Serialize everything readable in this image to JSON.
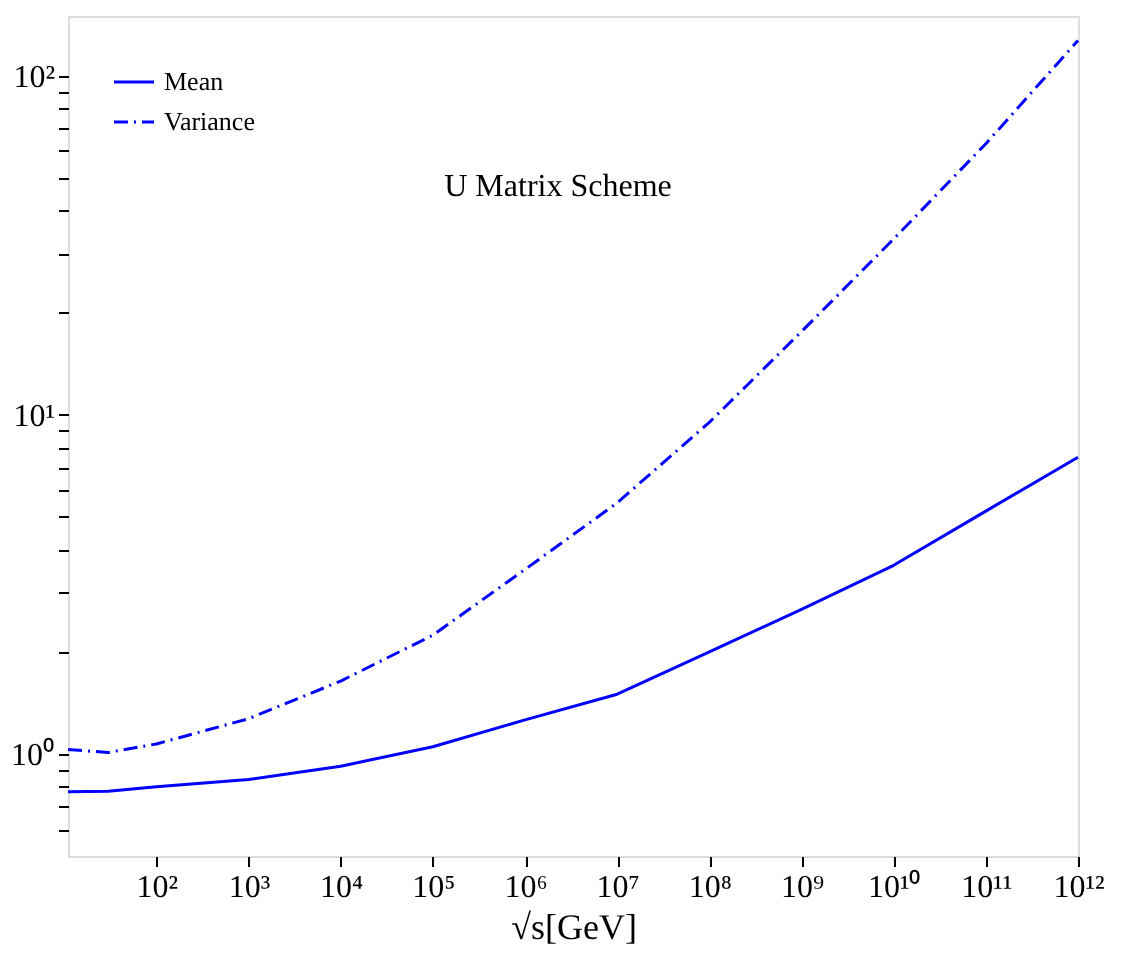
{
  "chart_data": {
    "type": "line",
    "xlabel": "√s[GeV]",
    "annotations": [
      "U Matrix Scheme"
    ],
    "x": [
      11,
      30,
      100,
      1000,
      10000,
      100000,
      1000000,
      10000000,
      100000000,
      1000000000,
      10000000000,
      100000000000,
      1000000000000
    ],
    "series": [
      {
        "name": "Mean",
        "color": "#0000ff",
        "line_style": "solid",
        "values": [
          0.774,
          0.776,
          0.8,
          0.84,
          0.92,
          1.05,
          1.26,
          1.5,
          2.0,
          2.67,
          3.6,
          5.2,
          7.5
        ]
      },
      {
        "name": "Variance",
        "color": "#0000ff",
        "line_style": "dashdot",
        "values": [
          1.03,
          1.01,
          1.07,
          1.27,
          1.64,
          2.24,
          3.5,
          5.5,
          9.5,
          17.6,
          33,
          63,
          127
        ]
      }
    ],
    "log": "xy",
    "xlim": [
      11,
      1000000000000
    ],
    "ylim": [
      0.5,
      150
    ],
    "xticks": [
      {
        "value": 100,
        "label": "10²"
      },
      {
        "value": 1000,
        "label": "10³"
      },
      {
        "value": 10000,
        "label": "10⁴"
      },
      {
        "value": 100000,
        "label": "10⁵"
      },
      {
        "value": 1000000,
        "label": "10⁶"
      },
      {
        "value": 10000000,
        "label": "10⁷"
      },
      {
        "value": 100000000,
        "label": "10⁸"
      },
      {
        "value": 1000000000,
        "label": "10⁹"
      },
      {
        "value": 10000000000,
        "label": "10¹⁰"
      },
      {
        "value": 100000000000,
        "label": "10¹¹"
      },
      {
        "value": 1000000000000,
        "label": "10¹²"
      }
    ],
    "yticks": [
      {
        "value": 0.6,
        "label": null
      },
      {
        "value": 0.7,
        "label": null
      },
      {
        "value": 0.8,
        "label": null
      },
      {
        "value": 0.9,
        "label": null
      },
      {
        "value": 1,
        "label": "10⁰"
      },
      {
        "value": 2,
        "label": null
      },
      {
        "value": 3,
        "label": null
      },
      {
        "value": 4,
        "label": null
      },
      {
        "value": 5,
        "label": null
      },
      {
        "value": 6,
        "label": null
      },
      {
        "value": 7,
        "label": null
      },
      {
        "value": 8,
        "label": null
      },
      {
        "value": 9,
        "label": null
      },
      {
        "value": 10,
        "label": "10¹"
      },
      {
        "value": 20,
        "label": null
      },
      {
        "value": 30,
        "label": null
      },
      {
        "value": 40,
        "label": null
      },
      {
        "value": 50,
        "label": null
      },
      {
        "value": 60,
        "label": null
      },
      {
        "value": 70,
        "label": null
      },
      {
        "value": 80,
        "label": null
      },
      {
        "value": 90,
        "label": null
      },
      {
        "value": 100,
        "label": "10²"
      }
    ],
    "grid": false,
    "legend": "top left",
    "marker": "none"
  }
}
